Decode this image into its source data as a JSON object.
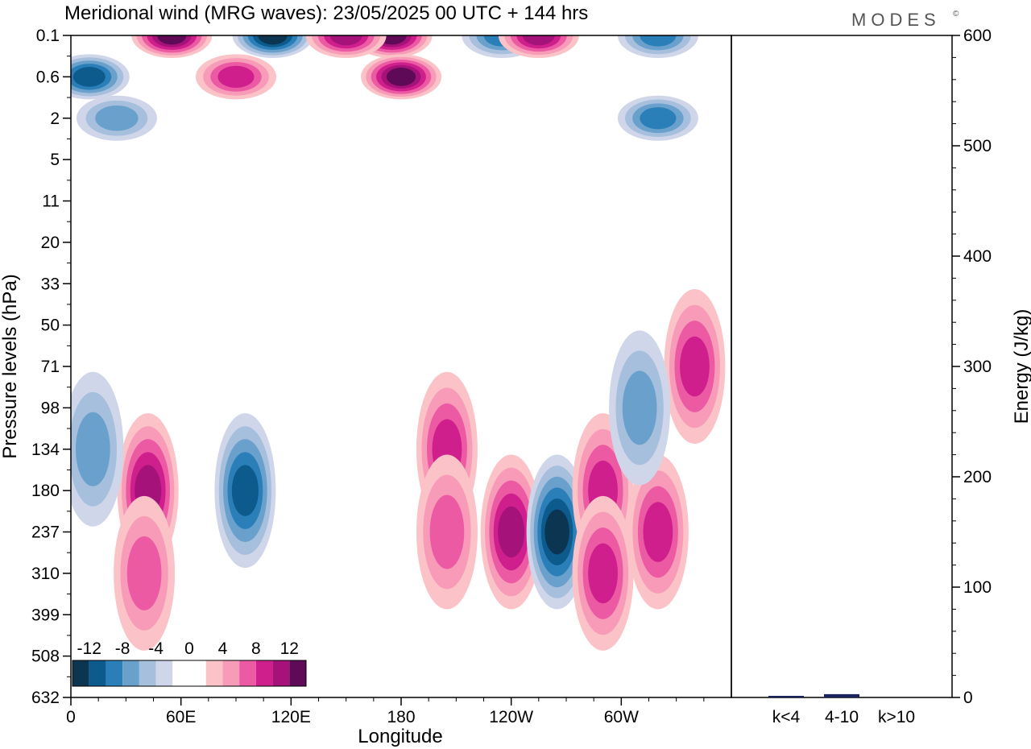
{
  "title": "Meridional wind (MRG waves):  23/05/2025  00 UTC  + 144 hrs",
  "logo": "MODES",
  "logo_mark": "©",
  "chart_data": [
    {
      "type": "heatmap",
      "title": "Meridional wind (MRG waves):  23/05/2025  00 UTC  + 144 hrs",
      "xlabel": "Longitude",
      "ylabel": "Pressure levels (hPa)",
      "x_ticks": [
        "0",
        "60E",
        "120E",
        "180",
        "120W",
        "60W"
      ],
      "y_ticks": [
        "0.1",
        "0.6",
        "2",
        "5",
        "11",
        "20",
        "33",
        "50",
        "71",
        "98",
        "134",
        "180",
        "237",
        "310",
        "399",
        "508",
        "632"
      ],
      "colorbar": {
        "labels": [
          "-12",
          "-8",
          "-4",
          "0",
          "4",
          "8",
          "12"
        ],
        "colors": [
          "#0b3550",
          "#0d5a8c",
          "#2b7fb8",
          "#6aa0cc",
          "#a5bfdd",
          "#d0d6ea",
          "#ffffff",
          "#ffffff",
          "#fbc3c7",
          "#f79bb8",
          "#ec5aa3",
          "#cf1f8c",
          "#a5137a",
          "#5e0a57"
        ]
      },
      "features": [
        {
          "lon": 42,
          "level": "180",
          "value": 9
        },
        {
          "lon": 40,
          "level": "310",
          "value": 6
        },
        {
          "lon": 95,
          "level": "180",
          "value": -9
        },
        {
          "lon": 12,
          "level": "134",
          "value": -5
        },
        {
          "lon": 205,
          "level": "134",
          "value": 7
        },
        {
          "lon": 205,
          "level": "237",
          "value": 6
        },
        {
          "lon": 240,
          "level": "237",
          "value": 9
        },
        {
          "lon": 265,
          "level": "237",
          "value": -11
        },
        {
          "lon": 290,
          "level": "180",
          "value": 8
        },
        {
          "lon": 290,
          "level": "310",
          "value": 7
        },
        {
          "lon": 320,
          "level": "237",
          "value": 8
        },
        {
          "lon": 340,
          "level": "71",
          "value": 7
        },
        {
          "lon": 310,
          "level": "98",
          "value": -6
        },
        {
          "lon": 55,
          "level": "0.1",
          "value": 13
        },
        {
          "lon": 110,
          "level": "0.1",
          "value": -12
        },
        {
          "lon": 175,
          "level": "0.1",
          "value": 14
        },
        {
          "lon": 180,
          "level": "0.6",
          "value": 12
        },
        {
          "lon": 150,
          "level": "0.1",
          "value": 10
        },
        {
          "lon": 235,
          "level": "0.1",
          "value": -7
        },
        {
          "lon": 255,
          "level": "0.1",
          "value": 10
        },
        {
          "lon": 320,
          "level": "0.1",
          "value": -8
        },
        {
          "lon": 10,
          "level": "0.6",
          "value": -10
        },
        {
          "lon": 25,
          "level": "2",
          "value": -6
        },
        {
          "lon": 90,
          "level": "0.6",
          "value": 8
        },
        {
          "lon": 320,
          "level": "2",
          "value": -8
        }
      ]
    },
    {
      "type": "bar",
      "ylabel": "Energy (J/kg)",
      "categories": [
        "k<4",
        "4-10",
        "k>10"
      ],
      "values": [
        1,
        3,
        0
      ],
      "ylim": [
        0,
        600
      ],
      "y_ticks": [
        "0",
        "100",
        "200",
        "300",
        "400",
        "500",
        "600"
      ],
      "bar_color": "#1a2360"
    }
  ]
}
